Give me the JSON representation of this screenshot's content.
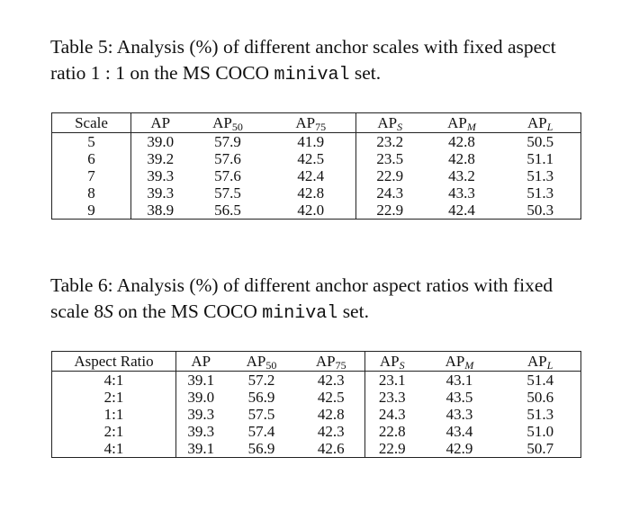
{
  "table5": {
    "caption": {
      "text": "Table 5: Analysis (%) of different anchor scales with fixed aspect ratio 1 : 1 on the MS COCO ",
      "code": "minival",
      "end": " set."
    },
    "headers": [
      {
        "base": "Scale"
      },
      {
        "base": "AP"
      },
      {
        "base": "AP",
        "sub": "50"
      },
      {
        "base": "AP",
        "sub": "75"
      },
      {
        "base": "AP",
        "sub": "S"
      },
      {
        "base": "AP",
        "sub": "M"
      },
      {
        "base": "AP",
        "sub": "L"
      }
    ],
    "rows": [
      [
        "5",
        "39.0",
        "57.9",
        "41.9",
        "23.2",
        "42.8",
        "50.5"
      ],
      [
        "6",
        "39.2",
        "57.6",
        "42.5",
        "23.5",
        "42.8",
        "51.1"
      ],
      [
        "7",
        "39.3",
        "57.6",
        "42.4",
        "22.9",
        "43.2",
        "51.3"
      ],
      [
        "8",
        "39.3",
        "57.5",
        "42.8",
        "24.3",
        "43.3",
        "51.3"
      ],
      [
        "9",
        "38.9",
        "56.5",
        "42.0",
        "22.9",
        "42.4",
        "50.3"
      ]
    ]
  },
  "table6": {
    "caption": {
      "text": "Table 6: Analysis (%) of different anchor aspect ratios with fixed scale 8",
      "italic": "S",
      "mid": " on the MS COCO ",
      "code": "minival",
      "end": " set."
    },
    "headers": [
      {
        "base": "Aspect Ratio"
      },
      {
        "base": "AP"
      },
      {
        "base": "AP",
        "sub": "50"
      },
      {
        "base": "AP",
        "sub": "75"
      },
      {
        "base": "AP",
        "sub": "S"
      },
      {
        "base": "AP",
        "sub": "M"
      },
      {
        "base": "AP",
        "sub": "L"
      }
    ],
    "rows": [
      [
        "4:1",
        "39.1",
        "57.2",
        "42.3",
        "23.1",
        "43.1",
        "51.4"
      ],
      [
        "2:1",
        "39.0",
        "56.9",
        "42.5",
        "23.3",
        "43.5",
        "50.6"
      ],
      [
        "1:1",
        "39.3",
        "57.5",
        "42.8",
        "24.3",
        "43.3",
        "51.3"
      ],
      [
        "2:1",
        "39.3",
        "57.4",
        "42.3",
        "22.8",
        "43.4",
        "51.0"
      ],
      [
        "4:1",
        "39.1",
        "56.9",
        "42.6",
        "22.9",
        "42.9",
        "50.7"
      ]
    ]
  }
}
